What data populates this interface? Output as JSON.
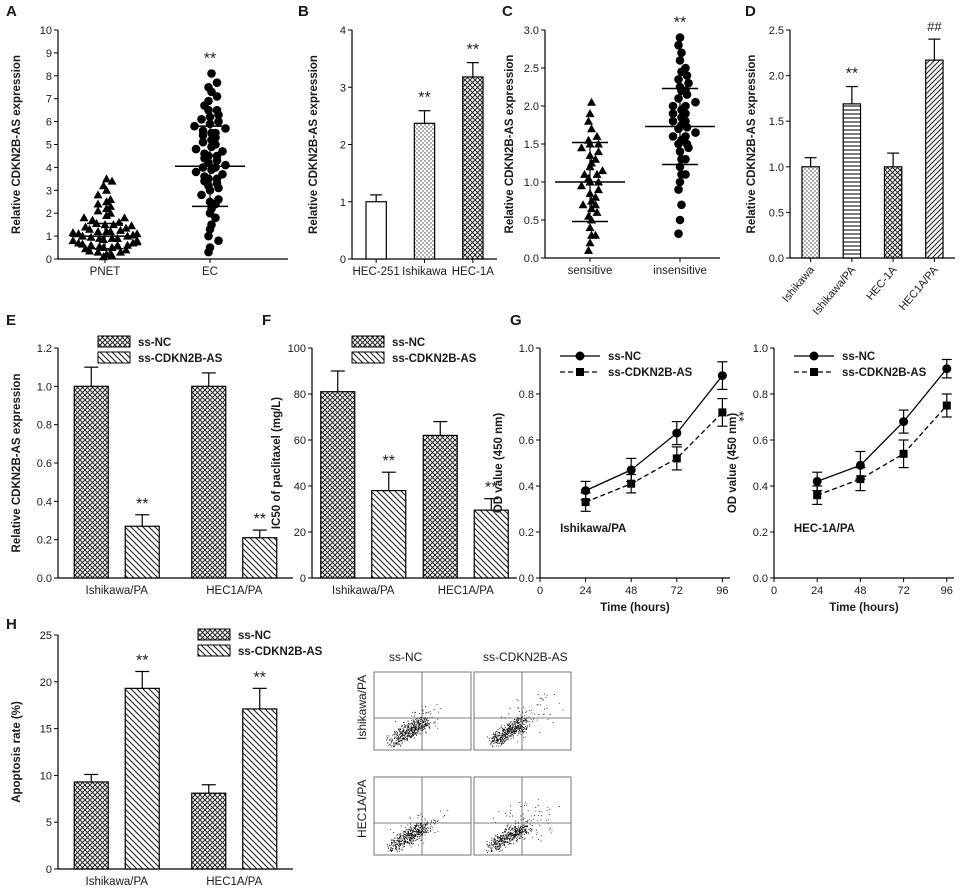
{
  "chart_data": [
    {
      "panel": "A",
      "type": "scatter",
      "title": "",
      "ylabel": "Relative CDKN2B-AS expression",
      "ylim": [
        0,
        10
      ],
      "yticks": [
        0,
        1,
        2,
        3,
        4,
        5,
        6,
        7,
        8,
        9,
        10
      ],
      "categories": [
        "PNET",
        "EC"
      ],
      "groups": [
        {
          "name": "PNET",
          "marker": "triangle",
          "mean": 1.0,
          "sd": 0.55,
          "values": [
            0.1,
            0.15,
            0.2,
            0.25,
            0.3,
            0.35,
            0.4,
            0.45,
            0.5,
            0.5,
            0.55,
            0.6,
            0.6,
            0.65,
            0.7,
            0.7,
            0.75,
            0.8,
            0.8,
            0.85,
            0.9,
            0.9,
            0.95,
            1.0,
            1.0,
            1.05,
            1.1,
            1.1,
            1.15,
            1.2,
            1.2,
            1.25,
            1.3,
            1.35,
            1.4,
            1.45,
            1.5,
            1.55,
            1.6,
            1.7,
            1.8,
            1.9,
            2.0,
            2.1,
            2.2,
            2.3,
            2.4,
            2.5,
            2.6,
            2.8,
            3.0,
            3.2,
            3.4,
            3.5,
            0.3,
            0.6,
            0.9,
            1.2,
            1.5,
            1.8
          ]
        },
        {
          "name": "EC",
          "marker": "circle",
          "mean": 4.05,
          "sd": 1.75,
          "values": [
            0.3,
            0.5,
            0.8,
            1.0,
            1.3,
            1.5,
            1.8,
            2.0,
            2.2,
            2.4,
            2.6,
            2.8,
            3.0,
            3.1,
            3.2,
            3.3,
            3.4,
            3.5,
            3.6,
            3.7,
            3.8,
            3.9,
            4.0,
            4.0,
            4.1,
            4.2,
            4.3,
            4.4,
            4.5,
            4.6,
            4.7,
            4.8,
            4.9,
            5.0,
            5.1,
            5.2,
            5.3,
            5.4,
            5.5,
            5.6,
            5.7,
            5.8,
            5.9,
            6.0,
            6.1,
            6.2,
            6.3,
            6.5,
            6.7,
            6.9,
            7.1,
            7.3,
            7.5,
            7.7,
            8.1,
            3.5,
            4.5,
            5.5,
            2.5,
            6.5
          ]
        }
      ],
      "annotations": [
        {
          "target": "EC",
          "text": "**"
        }
      ]
    },
    {
      "panel": "B",
      "type": "bar",
      "ylabel": "Relative CDKN2B-AS expression",
      "ylim": [
        0,
        4
      ],
      "yticks": [
        0,
        1,
        2,
        3,
        4
      ],
      "categories": [
        "HEC-251",
        "Ishikawa",
        "HEC-1A"
      ],
      "values": [
        1.0,
        2.37,
        3.18
      ],
      "errors": [
        0.12,
        0.22,
        0.25
      ],
      "patterns": [
        "white",
        "dots",
        "cross"
      ],
      "annotations": [
        "",
        "**",
        "**"
      ]
    },
    {
      "panel": "C",
      "type": "scatter",
      "ylabel": "Relative CDKN2B-AS expression",
      "ylim": [
        0,
        3.0
      ],
      "yticks": [
        0.0,
        0.5,
        1.0,
        1.5,
        2.0,
        2.5,
        3.0
      ],
      "categories": [
        "sensitive",
        "insensitive"
      ],
      "groups": [
        {
          "name": "sensitive",
          "marker": "triangle",
          "mean": 1.0,
          "sd": 0.52,
          "values": [
            0.1,
            0.2,
            0.3,
            0.4,
            0.5,
            0.55,
            0.6,
            0.65,
            0.7,
            0.75,
            0.8,
            0.85,
            0.9,
            0.95,
            1.0,
            1.0,
            1.05,
            1.1,
            1.15,
            1.2,
            1.25,
            1.3,
            1.35,
            1.4,
            1.45,
            1.5,
            1.55,
            1.6,
            1.7,
            1.8,
            1.9,
            2.05,
            0.3,
            0.7,
            1.1,
            1.5
          ]
        },
        {
          "name": "insensitive",
          "marker": "circle",
          "mean": 1.73,
          "sd": 0.5,
          "values": [
            0.32,
            0.5,
            0.7,
            0.9,
            1.0,
            1.1,
            1.2,
            1.3,
            1.4,
            1.45,
            1.5,
            1.55,
            1.6,
            1.65,
            1.7,
            1.72,
            1.75,
            1.8,
            1.85,
            1.9,
            1.95,
            2.0,
            2.05,
            2.1,
            2.15,
            2.2,
            2.25,
            2.3,
            2.35,
            2.4,
            2.5,
            2.6,
            2.7,
            2.8,
            2.9,
            1.3,
            1.6,
            1.9,
            2.2,
            1.1,
            1.5,
            1.8,
            2.0,
            2.45
          ]
        }
      ],
      "annotations": [
        {
          "target": "insensitive",
          "text": "**"
        }
      ]
    },
    {
      "panel": "D",
      "type": "bar",
      "ylabel": "Relative CDKN2B-AS expression",
      "ylim": [
        0,
        2.5
      ],
      "yticks": [
        0.0,
        0.5,
        1.0,
        1.5,
        2.0,
        2.5
      ],
      "categories": [
        "Ishikawa",
        "Ishikawa/PA",
        "HEC-1A",
        "HEC1A/PA"
      ],
      "values": [
        1.0,
        1.69,
        1.0,
        2.17
      ],
      "errors": [
        0.1,
        0.19,
        0.15,
        0.23
      ],
      "patterns": [
        "dots",
        "hlines",
        "cross",
        "diag"
      ],
      "annotations": [
        "",
        "**",
        "",
        "##"
      ]
    },
    {
      "panel": "E",
      "type": "bar",
      "ylabel": "Relative CDKN2B-AS expression",
      "ylim": [
        0,
        1.2
      ],
      "yticks": [
        0.0,
        0.2,
        0.4,
        0.6,
        0.8,
        1.0,
        1.2
      ],
      "categories": [
        "Ishikawa/PA",
        "HEC1A/PA"
      ],
      "legend": [
        "ss-NC",
        "ss-CDKN2B-AS"
      ],
      "series": [
        {
          "name": "ss-NC",
          "values": [
            1.0,
            1.0
          ],
          "errors": [
            0.1,
            0.07
          ],
          "pattern": "cross"
        },
        {
          "name": "ss-CDKN2B-AS",
          "values": [
            0.27,
            0.21
          ],
          "errors": [
            0.06,
            0.04
          ],
          "pattern": "backdiag"
        }
      ],
      "annotations": [
        "**",
        "**"
      ]
    },
    {
      "panel": "F",
      "type": "bar",
      "ylabel": "IC50 of paclitaxel (mg/L)",
      "ylim": [
        0,
        100
      ],
      "yticks": [
        0,
        20,
        40,
        60,
        80,
        100
      ],
      "categories": [
        "Ishikawa/PA",
        "HEC1A/PA"
      ],
      "legend": [
        "ss-NC",
        "ss-CDKN2B-AS"
      ],
      "series": [
        {
          "name": "ss-NC",
          "values": [
            81,
            62
          ],
          "errors": [
            9,
            6
          ],
          "pattern": "cross"
        },
        {
          "name": "ss-CDKN2B-AS",
          "values": [
            38,
            29.5
          ],
          "errors": [
            8,
            5
          ],
          "pattern": "backdiag"
        }
      ],
      "annotations": [
        "**",
        "**"
      ]
    },
    {
      "panel": "G",
      "type": "line",
      "subtitle": "Ishikawa/PA",
      "xlabel": "Time (hours)",
      "ylabel": "OD value (450 nm)",
      "xlim": [
        0,
        100
      ],
      "xticks": [
        0,
        24,
        48,
        72,
        96
      ],
      "ylim": [
        0,
        1.0
      ],
      "yticks": [
        0.0,
        0.2,
        0.4,
        0.6,
        0.8,
        1.0
      ],
      "x": [
        24,
        48,
        72,
        96
      ],
      "legend": [
        "ss-NC",
        "ss-CDKN2B-AS"
      ],
      "series": [
        {
          "name": "ss-NC",
          "values": [
            0.38,
            0.47,
            0.63,
            0.88
          ],
          "errors": [
            0.04,
            0.05,
            0.05,
            0.06
          ],
          "marker": "circle",
          "dash": false
        },
        {
          "name": "ss-CDKN2B-AS",
          "values": [
            0.33,
            0.41,
            0.52,
            0.72
          ],
          "errors": [
            0.04,
            0.04,
            0.05,
            0.06
          ],
          "marker": "square",
          "dash": true
        }
      ],
      "annotations": [
        "**"
      ]
    },
    {
      "panel": "G2",
      "type": "line",
      "subtitle": "HEC-1A/PA",
      "xlabel": "Time (hours)",
      "ylabel": "OD value (450 nm)",
      "xlim": [
        0,
        100
      ],
      "xticks": [
        0,
        24,
        48,
        72,
        96
      ],
      "ylim": [
        0,
        1.0
      ],
      "yticks": [
        0.0,
        0.2,
        0.4,
        0.6,
        0.8,
        1.0
      ],
      "x": [
        24,
        48,
        72,
        96
      ],
      "legend": [
        "ss-NC",
        "ss-CDKN2B-AS"
      ],
      "series": [
        {
          "name": "ss-NC",
          "values": [
            0.42,
            0.49,
            0.68,
            0.91
          ],
          "errors": [
            0.04,
            0.06,
            0.05,
            0.04
          ],
          "marker": "circle",
          "dash": false
        },
        {
          "name": "ss-CDKN2B-AS",
          "values": [
            0.36,
            0.43,
            0.54,
            0.75
          ],
          "errors": [
            0.04,
            0.05,
            0.06,
            0.05
          ],
          "marker": "square",
          "dash": true
        }
      ],
      "annotations": [
        "**"
      ]
    },
    {
      "panel": "H",
      "type": "bar",
      "ylabel": "Apoptosis rate (%)",
      "ylim": [
        0,
        25
      ],
      "yticks": [
        0,
        5,
        10,
        15,
        20,
        25
      ],
      "categories": [
        "Ishikawa/PA",
        "HEC1A/PA"
      ],
      "legend": [
        "ss-NC",
        "ss-CDKN2B-AS"
      ],
      "series": [
        {
          "name": "ss-NC",
          "values": [
            9.3,
            8.1
          ],
          "errors": [
            0.8,
            0.9
          ],
          "pattern": "cross"
        },
        {
          "name": "ss-CDKN2B-AS",
          "values": [
            19.3,
            17.1
          ],
          "errors": [
            1.8,
            2.2
          ],
          "pattern": "backdiag"
        }
      ],
      "annotations": [
        "**",
        "**"
      ]
    }
  ],
  "panel_letters": [
    "A",
    "B",
    "C",
    "D",
    "E",
    "F",
    "G",
    "H"
  ],
  "flow": {
    "columns": [
      "ss-NC",
      "ss-CDKN2B-AS"
    ],
    "rows": [
      "Ishikawa/PA",
      "HEC1A/PA"
    ]
  }
}
